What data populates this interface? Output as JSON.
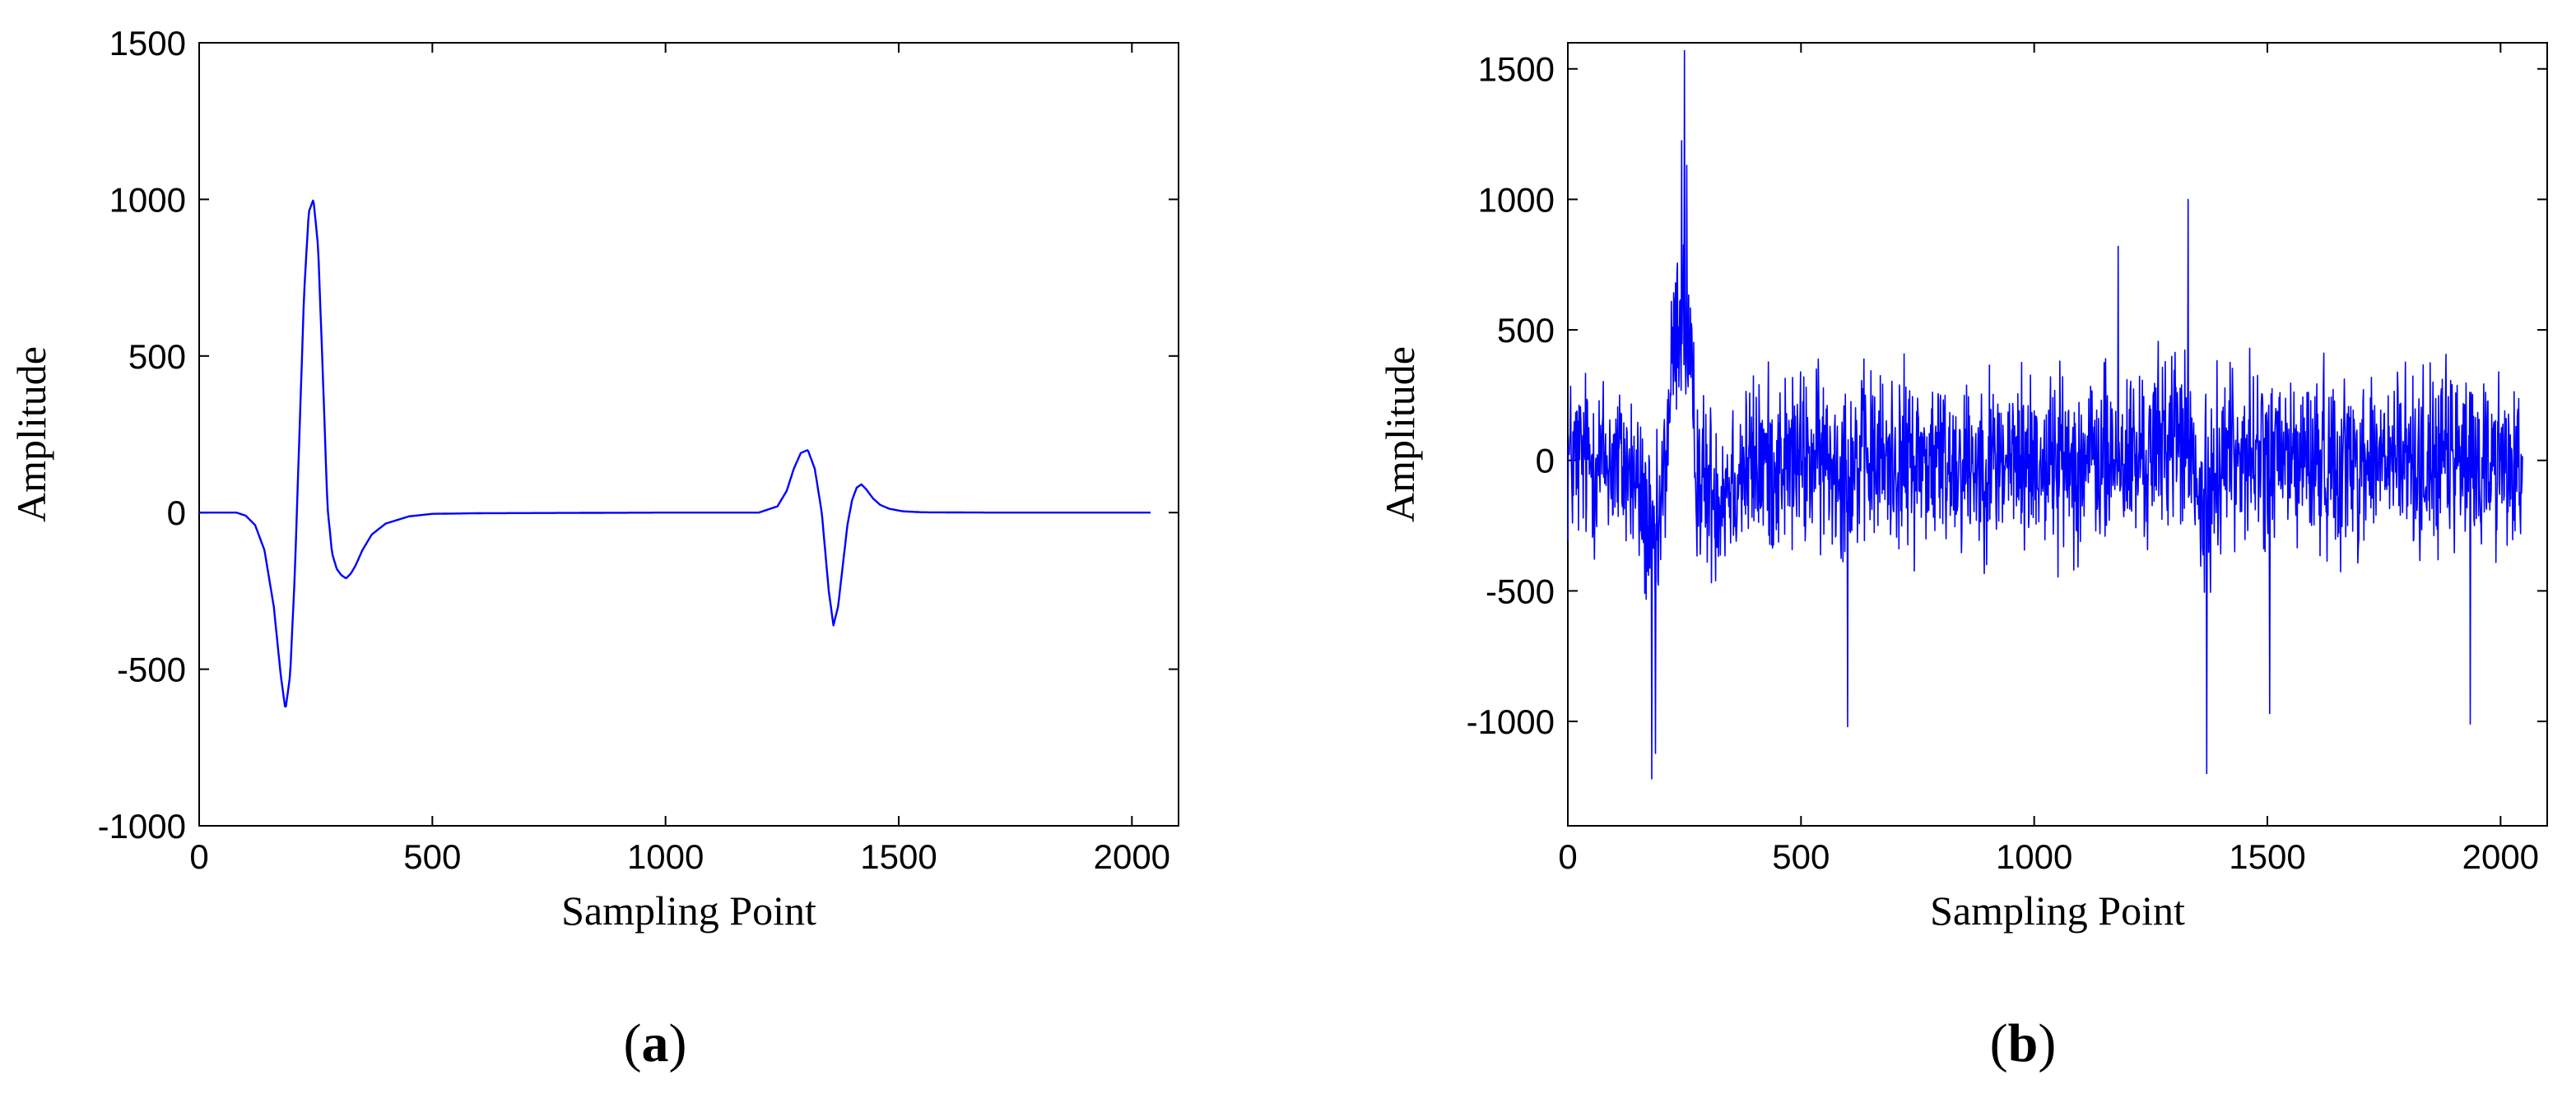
{
  "chart_data": [
    {
      "panel_label": "a",
      "type": "line",
      "xlabel": "Sampling Point",
      "ylabel": "Amplitude",
      "xlim": [
        0,
        2100
      ],
      "ylim": [
        -1000,
        1500
      ],
      "xticks": [
        0,
        500,
        1000,
        1500,
        2000
      ],
      "yticks": [
        -1000,
        -500,
        0,
        500,
        1000,
        1500
      ],
      "xtick_labels": [
        "0",
        "500",
        "1000",
        "1500",
        "2000"
      ],
      "ytick_labels": [
        "-1000",
        "-500",
        "0",
        "500",
        "1000",
        "1500"
      ],
      "grid": false,
      "series": [
        {
          "color": "#0000ff",
          "x": [
            0,
            80,
            100,
            120,
            140,
            160,
            175,
            185,
            195,
            205,
            215,
            225,
            235,
            245,
            255,
            265,
            275,
            285,
            295,
            305,
            315,
            325,
            335,
            350,
            370,
            400,
            450,
            500,
            600,
            800,
            1000,
            1200,
            1240,
            1260,
            1275,
            1290,
            1305,
            1320,
            1335,
            1350,
            1360,
            1370,
            1380,
            1390,
            1400,
            1410,
            1420,
            1430,
            1445,
            1460,
            1480,
            1510,
            1550,
            1700,
            2040
          ],
          "y": [
            0,
            0,
            -10,
            -40,
            -120,
            -300,
            -520,
            -630,
            -520,
            -200,
            250,
            700,
            960,
            1000,
            850,
            450,
            20,
            -130,
            -180,
            -200,
            -210,
            -195,
            -170,
            -120,
            -70,
            -35,
            -12,
            -4,
            -2,
            -1,
            0,
            0,
            20,
            70,
            140,
            190,
            200,
            140,
            0,
            -250,
            -360,
            -300,
            -170,
            -40,
            40,
            80,
            90,
            75,
            45,
            25,
            12,
            4,
            1,
            0,
            0
          ]
        }
      ]
    },
    {
      "panel_label": "b",
      "type": "line",
      "xlabel": "Sampling Point",
      "ylabel": "Amplitude",
      "xlim": [
        0,
        2100
      ],
      "ylim": [
        -1400,
        1600
      ],
      "xticks": [
        0,
        500,
        1000,
        1500,
        2000
      ],
      "yticks": [
        -1000,
        -500,
        0,
        500,
        1000,
        1500
      ],
      "xtick_labels": [
        "0",
        "500",
        "1000",
        "1500",
        "2000"
      ],
      "ytick_labels": [
        "-1000",
        "-500",
        "0",
        "500",
        "1000",
        "1500"
      ],
      "grid": false,
      "series": [
        {
          "color": "#0000ff",
          "points": 2048,
          "noise_amplitude": 290,
          "max_point": [
            250,
            1570
          ],
          "min_point": [
            180,
            -1220
          ],
          "spikes": [
            [
              600,
              -1020
            ],
            [
              1180,
              820
            ],
            [
              1330,
              1000
            ],
            [
              1370,
              -1200
            ],
            [
              1505,
              -970
            ],
            [
              1935,
              -1010
            ]
          ],
          "underlying_signal_x": [
            0,
            80,
            100,
            120,
            140,
            160,
            175,
            185,
            195,
            205,
            215,
            225,
            235,
            245,
            255,
            265,
            275,
            285,
            295,
            305,
            315,
            325,
            335,
            350,
            370,
            400,
            450,
            500,
            600,
            800,
            1000,
            1200,
            1240,
            1260,
            1275,
            1290,
            1305,
            1320,
            1335,
            1350,
            1360,
            1370,
            1380,
            1390,
            1400,
            1410,
            1420,
            1430,
            1445,
            1460,
            1480,
            1510,
            1550,
            1700,
            2040
          ],
          "underlying_signal_y": [
            0,
            0,
            -10,
            -40,
            -120,
            -300,
            -520,
            -630,
            -520,
            -200,
            250,
            700,
            960,
            1000,
            850,
            450,
            20,
            -130,
            -180,
            -200,
            -210,
            -195,
            -170,
            -120,
            -70,
            -35,
            -12,
            -4,
            -2,
            -1,
            0,
            0,
            20,
            70,
            140,
            190,
            200,
            140,
            0,
            -250,
            -360,
            -300,
            -170,
            -40,
            40,
            80,
            90,
            75,
            45,
            25,
            12,
            4,
            1,
            0,
            0
          ]
        }
      ]
    }
  ]
}
